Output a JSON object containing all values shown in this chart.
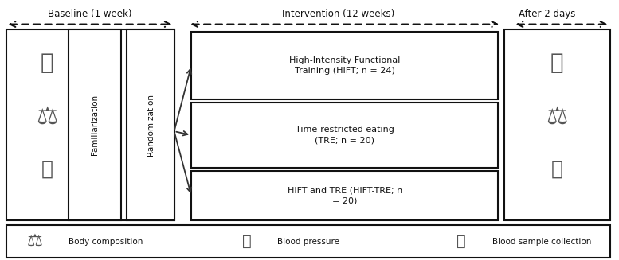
{
  "fig_width": 7.77,
  "fig_height": 3.27,
  "dpi": 100,
  "bg_color": "#ffffff",
  "title_baseline": "Baseline (1 week)",
  "title_intervention": "Intervention (12 weeks)",
  "title_after": "After 2 days",
  "box_familiarization": "Familiarization",
  "box_randomization": "Randomization",
  "group1": "High-Intensity Functional\nTraining (HIFT; n = 24)",
  "group2": "Time-restricted eating\n(TRE; n = 20)",
  "group3": "HIFT and TRE (HIFT-TRE; n\n= 20)",
  "legend_body": "Body composition",
  "legend_bp": "Blood pressure",
  "legend_blood": "Blood sample collection",
  "arrow_color": "#333333",
  "box_color": "#ffffff",
  "box_edge_color": "#111111",
  "text_color": "#111111",
  "dashed_color": "#111111"
}
